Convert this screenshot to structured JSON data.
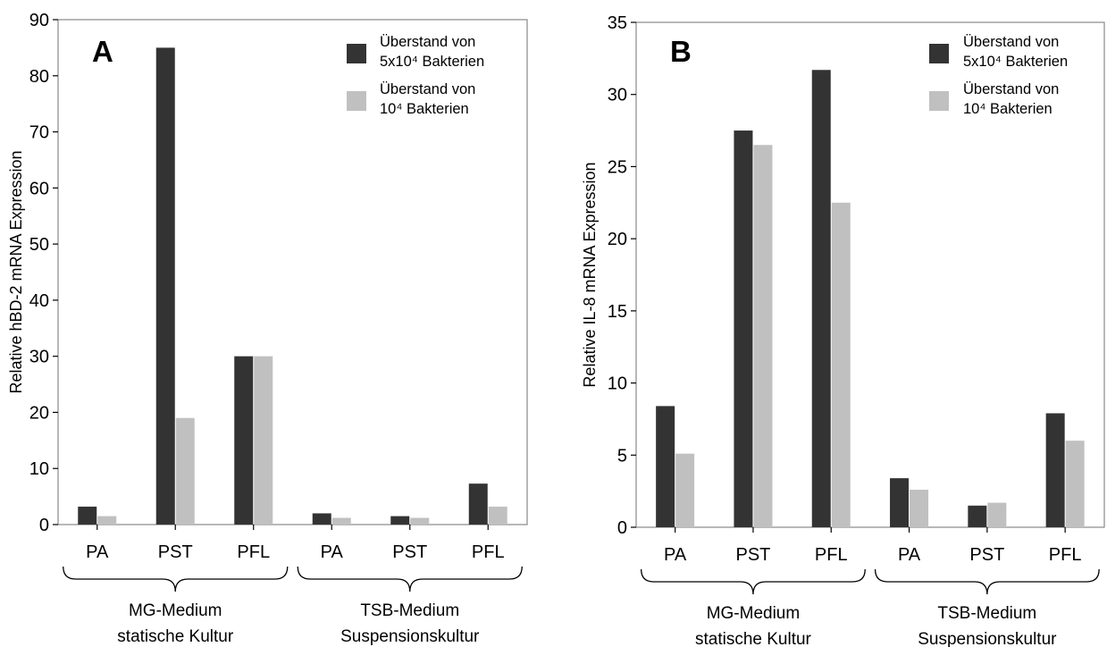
{
  "chart_data": [
    {
      "type": "bar",
      "panel_label": "A",
      "ylabel": "Relative hBD-2 mRNA Expression",
      "ylim": [
        0,
        90
      ],
      "yticks": [
        0,
        10,
        20,
        30,
        40,
        50,
        60,
        70,
        80,
        90
      ],
      "categories": [
        "PA",
        "PST",
        "PFL",
        "PA",
        "PST",
        "PFL"
      ],
      "groups": [
        {
          "line1": "MG-Medium",
          "line2": "statische Kultur"
        },
        {
          "line1": "TSB-Medium",
          "line2": "Suspensionskultur"
        }
      ],
      "series": [
        {
          "legend_line1": "Überstand von",
          "legend_line2": "5x10⁴ Bakterien",
          "color": "#333333",
          "values": [
            3.2,
            85,
            30,
            2,
            1.5,
            7.3
          ]
        },
        {
          "legend_line1": "Überstand von",
          "legend_line2": "10⁴ Bakterien",
          "color": "#c0c0c0",
          "values": [
            1.5,
            19,
            30,
            1.2,
            1.2,
            3.2
          ]
        }
      ],
      "legend_position": "top-right"
    },
    {
      "type": "bar",
      "panel_label": "B",
      "ylabel": "Relative IL-8 mRNA Expression",
      "ylim": [
        0,
        35
      ],
      "yticks": [
        0,
        5,
        10,
        15,
        20,
        25,
        30,
        35
      ],
      "categories": [
        "PA",
        "PST",
        "PFL",
        "PA",
        "PST",
        "PFL"
      ],
      "groups": [
        {
          "line1": "MG-Medium",
          "line2": "statische Kultur"
        },
        {
          "line1": "TSB-Medium",
          "line2": "Suspensionskultur"
        }
      ],
      "series": [
        {
          "legend_line1": "Überstand von",
          "legend_line2": "5x10⁴ Bakterien",
          "color": "#333333",
          "values": [
            8.4,
            27.5,
            31.7,
            3.4,
            1.5,
            7.9
          ]
        },
        {
          "legend_line1": "Überstand von",
          "legend_line2": "10⁴ Bakterien",
          "color": "#c0c0c0",
          "values": [
            5.1,
            26.5,
            22.5,
            2.6,
            1.7,
            6
          ]
        }
      ],
      "legend_position": "top-right"
    }
  ]
}
